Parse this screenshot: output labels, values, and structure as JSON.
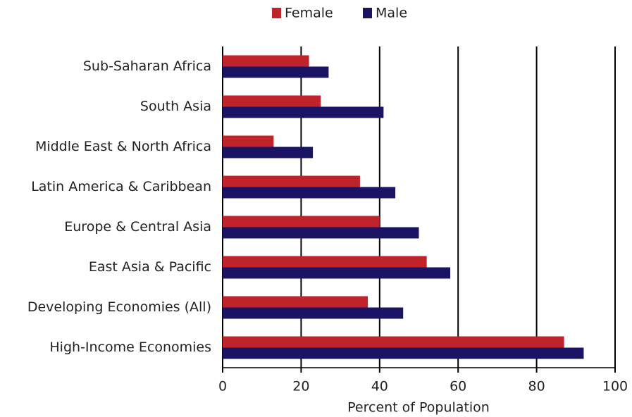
{
  "chart_data": {
    "type": "hbar",
    "x_label": "Percent of Population",
    "categories": [
      "Sub-Saharan Africa",
      "South Asia",
      "Middle East & North Africa",
      "Latin America & Caribbean",
      "Europe & Central Asia",
      "East Asia & Pacific",
      "Developing Economies (All)",
      "High-Income Economies"
    ],
    "series": [
      {
        "name": "Female",
        "color": "#c1232b",
        "values": [
          22,
          25,
          13,
          35,
          40,
          52,
          37,
          87
        ]
      },
      {
        "name": "Male",
        "color": "#1b1464",
        "values": [
          27,
          41,
          23,
          44,
          50,
          58,
          46,
          92
        ]
      }
    ],
    "xlim": [
      0,
      100
    ],
    "xticks": [
      0,
      20,
      40,
      60,
      80,
      100
    ],
    "grid": true,
    "legend": "top"
  }
}
